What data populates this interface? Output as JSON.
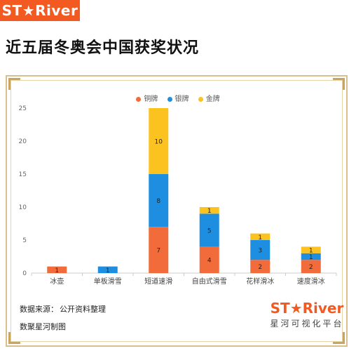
{
  "brand": {
    "logo_text": "ST★River",
    "subtitle": "星河可视化平台"
  },
  "headline": "近五届冬奥会中国获奖状况",
  "footer": {
    "source_label": "数据来源：",
    "source_value": "公开资料整理",
    "maker": "数聚星河制图"
  },
  "colors": {
    "bronze": "#f26b3a",
    "silver": "#1e8fe0",
    "gold": "#fcc21f",
    "accent": "#f25a22"
  },
  "chart_data": {
    "type": "bar",
    "stacked": true,
    "title": "",
    "xlabel": "",
    "ylabel": "",
    "ylim": [
      0,
      25
    ],
    "yticks": [
      0,
      5,
      10,
      15,
      20,
      25
    ],
    "grid": false,
    "legend_position": "top-center",
    "categories": [
      "冰壶",
      "单板滑雪",
      "短道速滑",
      "自由式滑雪",
      "花样滑冰",
      "速度滑冰"
    ],
    "series": [
      {
        "name": "铜牌",
        "color": "#f26b3a",
        "values": [
          1,
          0,
          7,
          4,
          2,
          2
        ]
      },
      {
        "name": "银牌",
        "color": "#1e8fe0",
        "values": [
          0,
          1,
          8,
          5,
          3,
          1
        ]
      },
      {
        "name": "金牌",
        "color": "#fcc21f",
        "values": [
          0,
          0,
          10,
          1,
          1,
          1
        ]
      }
    ]
  }
}
